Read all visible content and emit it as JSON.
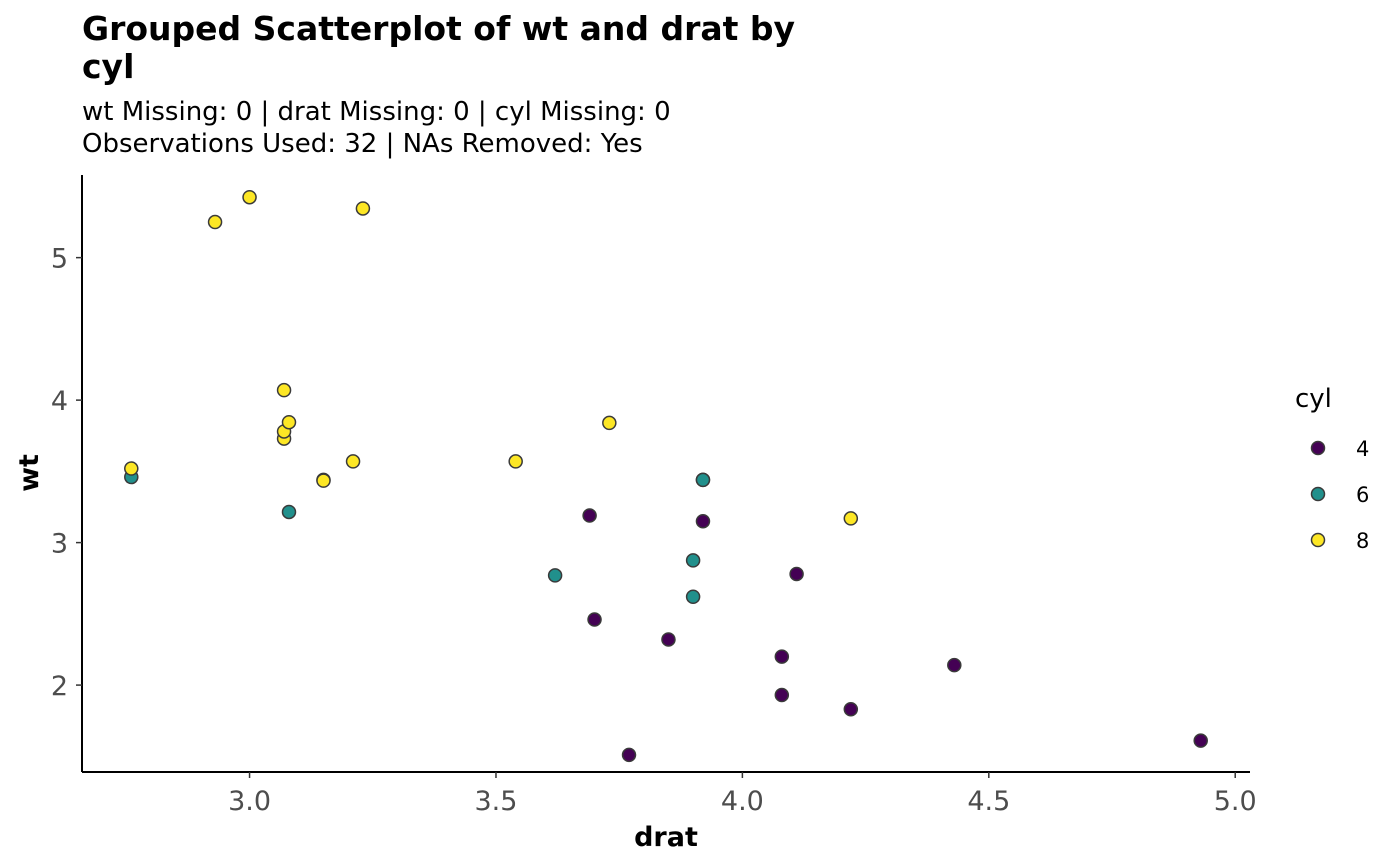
{
  "chart_data": {
    "type": "scatter",
    "title": "Grouped Scatterplot of wt and drat by cyl",
    "subtitle_lines": [
      "wt Missing: 0 | drat Missing: 0 | cyl Missing: 0",
      "Observations Used: 32 | NAs Removed: Yes"
    ],
    "xlabel": "drat",
    "ylabel": "wt",
    "xlim": [
      2.66,
      5.03
    ],
    "ylim": [
      1.39,
      5.58
    ],
    "xticks": [
      3.0,
      3.5,
      4.0,
      4.5,
      5.0
    ],
    "xtick_labels": [
      "3.0",
      "3.5",
      "4.0",
      "4.5",
      "5.0"
    ],
    "yticks": [
      2,
      3,
      4,
      5
    ],
    "ytick_labels": [
      "2",
      "3",
      "4",
      "5"
    ],
    "grid": false,
    "legend": {
      "title": "cyl",
      "placement": "right"
    },
    "series": [
      {
        "name": "4",
        "color": "#440154",
        "x": [
          3.85,
          3.77,
          4.08,
          4.93,
          4.22,
          3.7,
          4.43,
          3.69,
          3.92,
          4.08,
          4.11
        ],
        "y": [
          2.32,
          1.51,
          2.2,
          1.61,
          1.83,
          2.46,
          2.14,
          3.19,
          3.15,
          1.93,
          2.78
        ]
      },
      {
        "name": "6",
        "color": "#21908C",
        "x": [
          3.9,
          3.9,
          3.08,
          2.76,
          3.92,
          3.92,
          3.62
        ],
        "y": [
          2.62,
          2.875,
          3.215,
          3.46,
          3.44,
          3.44,
          2.77
        ]
      },
      {
        "name": "8",
        "color": "#FDE725",
        "x": [
          3.15,
          3.21,
          3.07,
          3.07,
          3.07,
          2.93,
          3.0,
          3.23,
          2.76,
          3.15,
          3.73,
          3.08,
          4.22,
          3.54
        ],
        "y": [
          3.44,
          3.57,
          4.07,
          3.73,
          3.78,
          5.25,
          5.424,
          5.345,
          3.52,
          3.435,
          3.84,
          3.845,
          3.17,
          3.57
        ]
      }
    ]
  }
}
